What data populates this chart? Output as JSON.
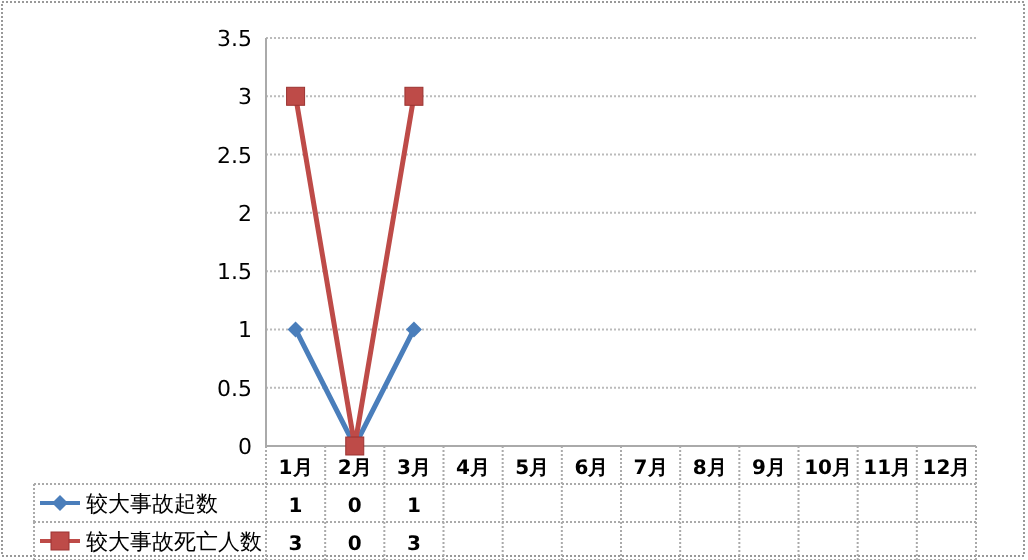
{
  "chart_data": {
    "type": "line",
    "categories": [
      "1月",
      "2月",
      "3月",
      "4月",
      "5月",
      "6月",
      "7月",
      "8月",
      "9月",
      "10月",
      "11月",
      "12月"
    ],
    "series": [
      {
        "name": "较大事故起数",
        "color": "#4a7ebb",
        "marker": "diamond",
        "values": [
          1,
          0,
          1,
          null,
          null,
          null,
          null,
          null,
          null,
          null,
          null,
          null
        ]
      },
      {
        "name": "较大事故死亡人数",
        "color": "#be4b48",
        "marker": "square",
        "values": [
          3,
          0,
          3,
          null,
          null,
          null,
          null,
          null,
          null,
          null,
          null,
          null
        ]
      }
    ],
    "ylim": [
      0,
      3.5
    ],
    "yticks": [
      0,
      0.5,
      1,
      1.5,
      2,
      2.5,
      3,
      3.5
    ],
    "grid": "y",
    "legend": "bottom",
    "data_labels": true
  }
}
